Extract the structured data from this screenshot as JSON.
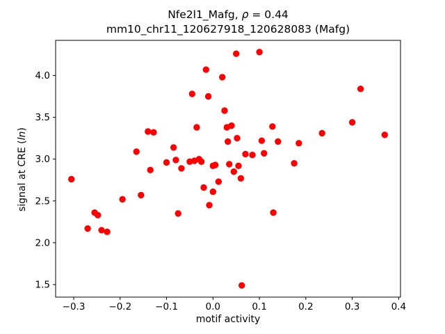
{
  "figure": {
    "background": "#ffffff",
    "frame_color": "#000000"
  },
  "titles": {
    "line1_prefix": "Nfe2l1_Mafg, ",
    "line1_rho": "ρ",
    "line1_suffix": " = 0.44",
    "line2": "mm10_chr11_120627918_120628083 (Mafg)"
  },
  "ylabel_parts": {
    "prefix": "signal at CRE (",
    "ln": "ln",
    "suffix": ")"
  },
  "chart_data": {
    "type": "scatter",
    "title": "Nfe2l1_Mafg, ρ = 0.44",
    "subtitle": "mm10_chr11_120627918_120628083 (Mafg)",
    "xlabel": "motif activity",
    "ylabel": "signal at CRE (ln)",
    "xlim": [
      -0.339,
      0.404
    ],
    "ylim": [
      1.35,
      4.42
    ],
    "grid": false,
    "legend": null,
    "marker_color": "#ff0000",
    "marker_radius": 4.7,
    "xticks": [
      {
        "v": -0.3,
        "label": "−0.3"
      },
      {
        "v": -0.2,
        "label": "−0.2"
      },
      {
        "v": -0.1,
        "label": "−0.1"
      },
      {
        "v": 0.0,
        "label": "0.0"
      },
      {
        "v": 0.1,
        "label": "0.1"
      },
      {
        "v": 0.2,
        "label": "0.2"
      },
      {
        "v": 0.3,
        "label": "0.3"
      },
      {
        "v": 0.4,
        "label": "0.4"
      }
    ],
    "yticks": [
      {
        "v": 1.5,
        "label": "1.5"
      },
      {
        "v": 2.0,
        "label": "2.0"
      },
      {
        "v": 2.5,
        "label": "2.5"
      },
      {
        "v": 3.0,
        "label": "3.0"
      },
      {
        "v": 3.5,
        "label": "3.5"
      },
      {
        "v": 4.0,
        "label": "4.0"
      }
    ],
    "points": [
      [
        -0.305,
        2.76
      ],
      [
        -0.27,
        2.17
      ],
      [
        -0.255,
        2.36
      ],
      [
        -0.248,
        2.33
      ],
      [
        -0.24,
        2.15
      ],
      [
        -0.228,
        2.13
      ],
      [
        -0.195,
        2.52
      ],
      [
        -0.165,
        3.09
      ],
      [
        -0.155,
        2.57
      ],
      [
        -0.14,
        3.33
      ],
      [
        -0.135,
        2.87
      ],
      [
        -0.128,
        3.32
      ],
      [
        -0.1,
        2.96
      ],
      [
        -0.085,
        3.14
      ],
      [
        -0.08,
        2.99
      ],
      [
        -0.075,
        2.35
      ],
      [
        -0.068,
        2.89
      ],
      [
        -0.05,
        2.97
      ],
      [
        -0.045,
        3.78
      ],
      [
        -0.04,
        2.98
      ],
      [
        -0.035,
        3.38
      ],
      [
        -0.03,
        3.0
      ],
      [
        -0.025,
        2.97
      ],
      [
        -0.02,
        2.66
      ],
      [
        -0.015,
        4.07
      ],
      [
        -0.01,
        3.75
      ],
      [
        -0.008,
        2.45
      ],
      [
        0.0,
        2.92
      ],
      [
        0.0,
        2.61
      ],
      [
        0.005,
        2.93
      ],
      [
        0.012,
        2.73
      ],
      [
        0.02,
        3.98
      ],
      [
        0.025,
        3.58
      ],
      [
        0.03,
        3.38
      ],
      [
        0.032,
        3.21
      ],
      [
        0.035,
        2.94
      ],
      [
        0.04,
        3.4
      ],
      [
        0.045,
        2.85
      ],
      [
        0.05,
        4.26
      ],
      [
        0.052,
        3.25
      ],
      [
        0.055,
        2.92
      ],
      [
        0.06,
        2.77
      ],
      [
        0.062,
        1.49
      ],
      [
        0.07,
        3.06
      ],
      [
        0.085,
        3.05
      ],
      [
        0.1,
        4.28
      ],
      [
        0.105,
        3.22
      ],
      [
        0.11,
        3.07
      ],
      [
        0.128,
        3.39
      ],
      [
        0.13,
        2.36
      ],
      [
        0.14,
        3.21
      ],
      [
        0.175,
        2.95
      ],
      [
        0.185,
        3.19
      ],
      [
        0.235,
        3.31
      ],
      [
        0.3,
        3.44
      ],
      [
        0.318,
        3.84
      ],
      [
        0.37,
        3.29
      ]
    ]
  }
}
